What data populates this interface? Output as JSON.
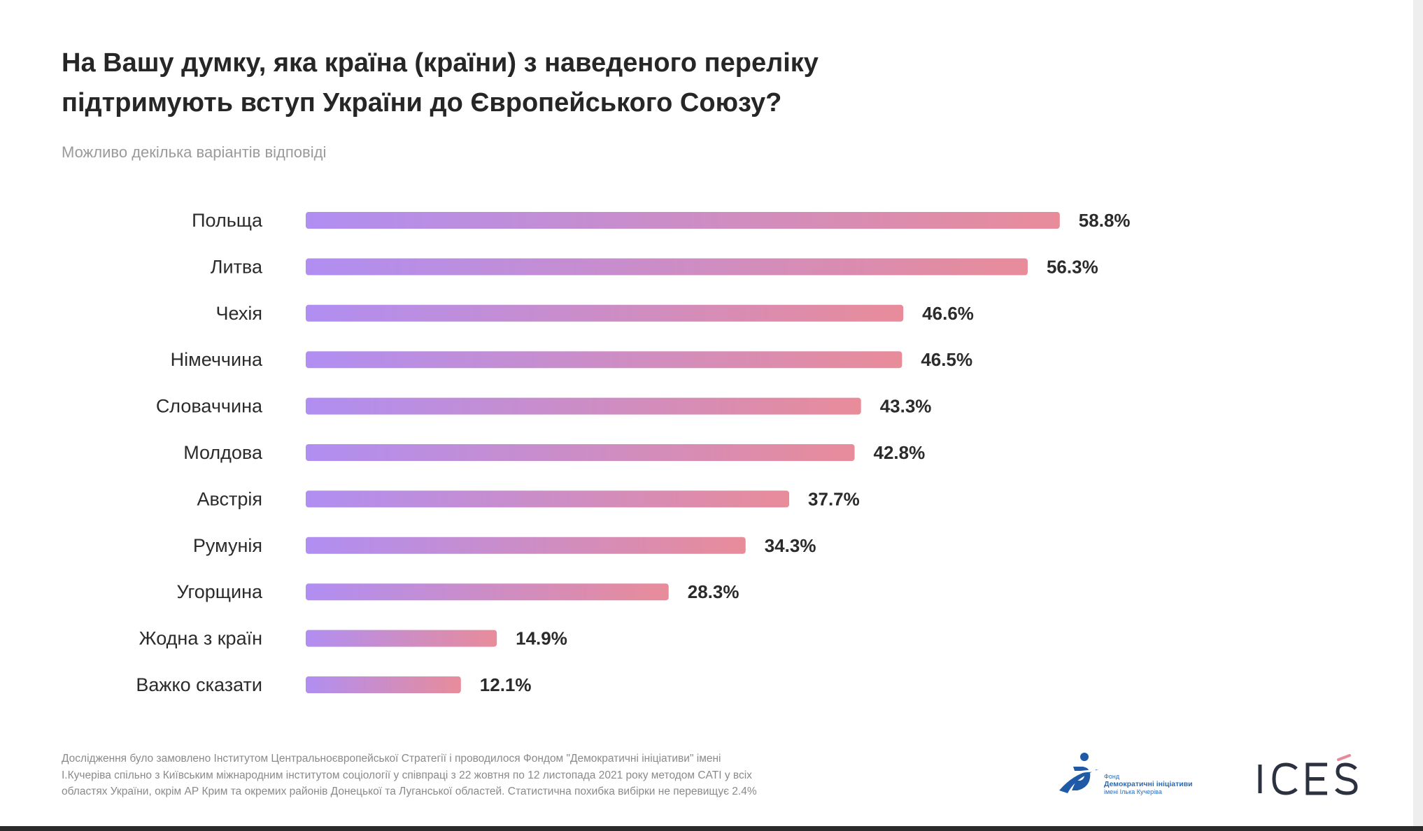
{
  "title_line1": "На Вашу думку, яка країна (країни) з наведеного переліку",
  "title_line2": "підтримують вступ України до Європейського Союзу?",
  "subtitle": "Можливо декілька варіантів відповіді",
  "footnote_lines": [
    "Дослідження було замовлено Інститутом Центральноєвропейської Стратегії і проводилося Фондом \"Демократичні ініціативи\" імені",
    "І.Кучеріва спільно з Київським міжнародним інститутом соціології у співпраці з 22 жовтня по 12 листопада 2021 року методом CATI у всіх",
    "областях України, окрім АР Крим та окремих районів Донецької та Луганської областей. Статистична похибка вибірки не перевищує 2.4%"
  ],
  "logos": {
    "dif_line1": "Фонд",
    "dif_line2": "Демократичні ініціативи",
    "dif_line3": "імені Ілька Кучеріва",
    "ices": "ICES"
  },
  "colors": {
    "bar_start": "#b08ef2",
    "bar_end": "#e88c9a",
    "label": "#2b2b2b"
  },
  "chart_data": {
    "type": "bar",
    "orientation": "horizontal",
    "unit": "%",
    "categories": [
      "Польща",
      "Литва",
      "Чехія",
      "Німеччина",
      "Словаччина",
      "Молдова",
      "Австрія",
      "Румунія",
      "Угорщина",
      "Жодна з країн",
      "Важко сказати"
    ],
    "values": [
      58.8,
      56.3,
      46.6,
      46.5,
      43.3,
      42.8,
      37.7,
      34.3,
      28.3,
      14.9,
      12.1
    ],
    "value_labels": [
      "58.8%",
      "56.3%",
      "46.6%",
      "46.5%",
      "43.3%",
      "42.8%",
      "37.7%",
      "34.3%",
      "28.3%",
      "14.9%",
      "12.1%"
    ],
    "xlabel": "",
    "ylabel": "",
    "grid": false,
    "legend": "none"
  }
}
